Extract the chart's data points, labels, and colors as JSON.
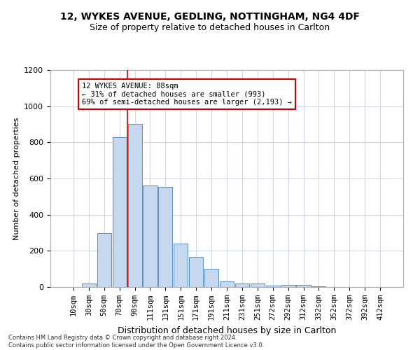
{
  "title1": "12, WYKES AVENUE, GEDLING, NOTTINGHAM, NG4 4DF",
  "title2": "Size of property relative to detached houses in Carlton",
  "xlabel": "Distribution of detached houses by size in Carlton",
  "ylabel": "Number of detached properties",
  "categories": [
    "10sqm",
    "30sqm",
    "50sqm",
    "70sqm",
    "90sqm",
    "111sqm",
    "131sqm",
    "151sqm",
    "171sqm",
    "191sqm",
    "211sqm",
    "231sqm",
    "251sqm",
    "272sqm",
    "292sqm",
    "312sqm",
    "332sqm",
    "352sqm",
    "372sqm",
    "392sqm",
    "412sqm"
  ],
  "values": [
    0,
    20,
    300,
    830,
    900,
    560,
    555,
    240,
    165,
    100,
    30,
    20,
    20,
    8,
    10,
    10,
    5,
    0,
    0,
    0,
    0
  ],
  "bar_color": "#c5d8f0",
  "bar_edge_color": "#5a8fc0",
  "vline_x": 3.5,
  "vline_color": "#cc0000",
  "annotation_text": "12 WYKES AVENUE: 88sqm\n← 31% of detached houses are smaller (993)\n69% of semi-detached houses are larger (2,193) →",
  "annotation_box_color": "#ffffff",
  "annotation_box_edge_color": "#cc0000",
  "ylim": [
    0,
    1200
  ],
  "yticks": [
    0,
    200,
    400,
    600,
    800,
    1000,
    1200
  ],
  "footer_text": "Contains HM Land Registry data © Crown copyright and database right 2024.\nContains public sector information licensed under the Open Government Licence v3.0.",
  "background_color": "#ffffff",
  "grid_color": "#d0d8e8",
  "title1_fontsize": 10,
  "title2_fontsize": 9,
  "ylabel_fontsize": 8,
  "xlabel_fontsize": 9,
  "tick_fontsize": 7.5,
  "ytick_fontsize": 8,
  "footer_fontsize": 6.0
}
